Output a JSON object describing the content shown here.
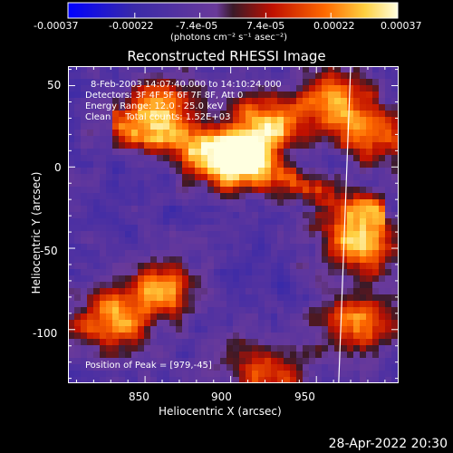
{
  "colorbar": {
    "ticks": [
      "-0.00037",
      "-0.00022",
      "-7.4e-05",
      "7.4e-05",
      "0.00022",
      "0.00037"
    ],
    "units": "(photons cm⁻² s⁻¹ asec⁻²)",
    "min": -0.00037,
    "max": 0.00037
  },
  "chart_data": {
    "type": "heatmap",
    "title": "Reconstructed RHESSI Image",
    "xlabel": "Heliocentric X (arcsec)",
    "ylabel": "Heliocentric Y (arcsec)",
    "xlim": [
      805,
      998
    ],
    "ylim": [
      -133,
      62
    ],
    "xticks": [
      850,
      900,
      950
    ],
    "yticks": [
      50,
      0,
      -50,
      -100
    ],
    "annotations": [
      "8-Feb-2003 14:07:40.000 to 14:10:24.000",
      "Detectors: 3F 4F 5F 6F 7F 8F, Att 0",
      "Energy Range: 12.0 - 25.0 keV",
      "Clean     Total counts: 1.52E+03"
    ],
    "peak_label": "Position of Peak = [979,-45]",
    "peak": [
      979,
      -45
    ],
    "bright_sources": [
      {
        "x": 900,
        "y": 5,
        "level": 1.0
      },
      {
        "x": 920,
        "y": 25,
        "level": 0.9
      },
      {
        "x": 860,
        "y": 35,
        "level": 0.85
      },
      {
        "x": 975,
        "y": -45,
        "level": 1.0
      },
      {
        "x": 830,
        "y": -95,
        "level": 0.85
      },
      {
        "x": 860,
        "y": -75,
        "level": 0.75
      },
      {
        "x": 975,
        "y": -95,
        "level": 0.8
      },
      {
        "x": 960,
        "y": 40,
        "level": 0.8
      },
      {
        "x": 985,
        "y": 20,
        "level": 0.7
      },
      {
        "x": 920,
        "y": -125,
        "level": 0.6
      }
    ],
    "limb_line": [
      [
        970,
        62
      ],
      [
        963,
        -133
      ]
    ]
  },
  "footer": {
    "date": "28-Apr-2022 20:30"
  }
}
